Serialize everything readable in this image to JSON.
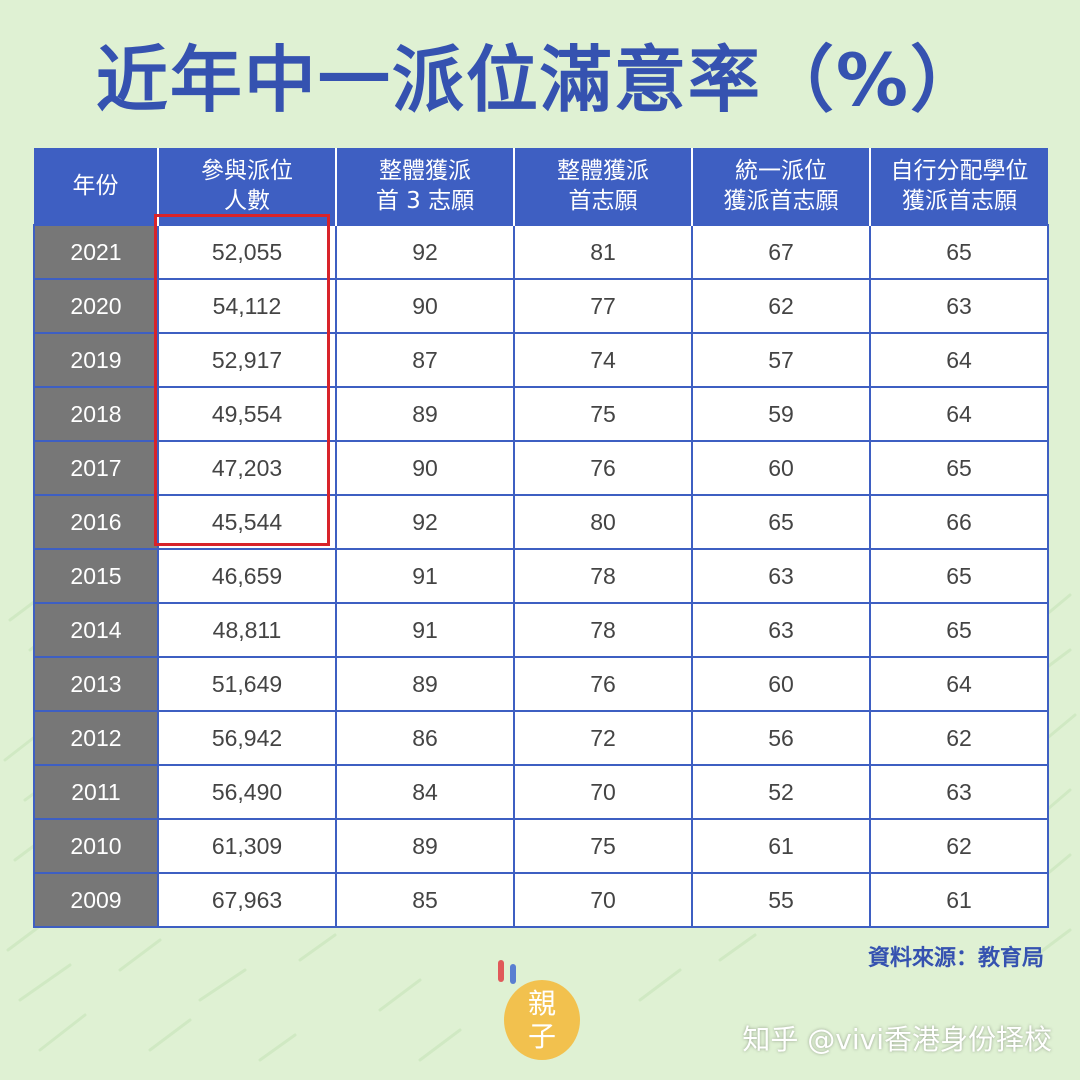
{
  "title": "近年中一派位滿意率（%）",
  "table": {
    "headers": [
      [
        "年份"
      ],
      [
        "參與派位",
        "人數"
      ],
      [
        "整體獲派",
        "首 3 志願"
      ],
      [
        "整體獲派",
        "首志願"
      ],
      [
        "統一派位",
        "獲派首志願"
      ],
      [
        "自行分配學位",
        "獲派首志願"
      ]
    ],
    "rows": [
      [
        "2021",
        "52,055",
        "92",
        "81",
        "67",
        "65"
      ],
      [
        "2020",
        "54,112",
        "90",
        "77",
        "62",
        "63"
      ],
      [
        "2019",
        "52,917",
        "87",
        "74",
        "57",
        "64"
      ],
      [
        "2018",
        "49,554",
        "89",
        "75",
        "59",
        "64"
      ],
      [
        "2017",
        "47,203",
        "90",
        "76",
        "60",
        "65"
      ],
      [
        "2016",
        "45,544",
        "92",
        "80",
        "65",
        "66"
      ],
      [
        "2015",
        "46,659",
        "91",
        "78",
        "63",
        "65"
      ],
      [
        "2014",
        "48,811",
        "91",
        "78",
        "63",
        "65"
      ],
      [
        "2013",
        "51,649",
        "89",
        "76",
        "60",
        "64"
      ],
      [
        "2012",
        "56,942",
        "86",
        "72",
        "56",
        "62"
      ],
      [
        "2011",
        "56,490",
        "84",
        "70",
        "52",
        "63"
      ],
      [
        "2010",
        "61,309",
        "89",
        "75",
        "61",
        "62"
      ],
      [
        "2009",
        "67,963",
        "85",
        "70",
        "55",
        "61"
      ]
    ]
  },
  "source": "資料來源：教育局",
  "logo": {
    "text": "親子",
    "icon": "egg-logo-icon"
  },
  "watermark": "知乎 @vivi香港身份择校",
  "colors": {
    "background": "#dff1d3",
    "title": "#3552b0",
    "header": "#3e5fc2",
    "year_cell": "#777777",
    "highlight": "#d8232a",
    "logo": "#f2c14e"
  }
}
